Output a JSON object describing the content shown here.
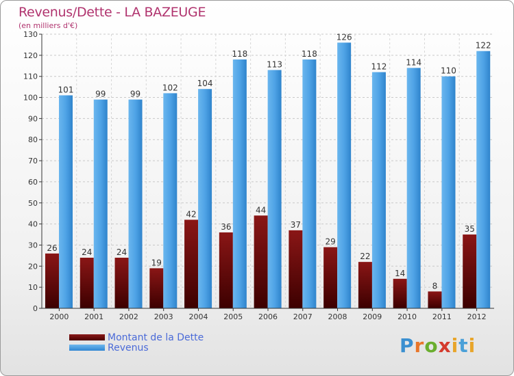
{
  "header": {
    "title": "Revenus/Dette - LA BAZEUGE",
    "subtitle": "(en milliers d'€)"
  },
  "legend": {
    "debt_label": "Montant de la Dette",
    "revenue_label": "Revenus"
  },
  "logo": {
    "text": "Proxiti"
  },
  "colors": {
    "debt": "#6b0d0d",
    "revenue": "#4fa3e6",
    "title": "#b0336e"
  },
  "chart_data": {
    "type": "bar",
    "title": "Revenus/Dette - LA BAZEUGE",
    "subtitle": "(en milliers d'€)",
    "categories": [
      "2000",
      "2001",
      "2002",
      "2003",
      "2004",
      "2005",
      "2006",
      "2007",
      "2008",
      "2009",
      "2010",
      "2011",
      "2012"
    ],
    "series": [
      {
        "name": "Montant de la Dette",
        "values": [
          26,
          24,
          24,
          19,
          42,
          36,
          44,
          37,
          29,
          22,
          14,
          8,
          35
        ]
      },
      {
        "name": "Revenus",
        "values": [
          101,
          99,
          99,
          102,
          104,
          118,
          113,
          118,
          126,
          112,
          114,
          110,
          122
        ]
      }
    ],
    "ylim": [
      0,
      130
    ],
    "yticks": [
      0,
      10,
      20,
      30,
      40,
      50,
      60,
      70,
      80,
      90,
      100,
      110,
      120,
      130
    ],
    "grid": true,
    "legend_position": "bottom-left"
  }
}
